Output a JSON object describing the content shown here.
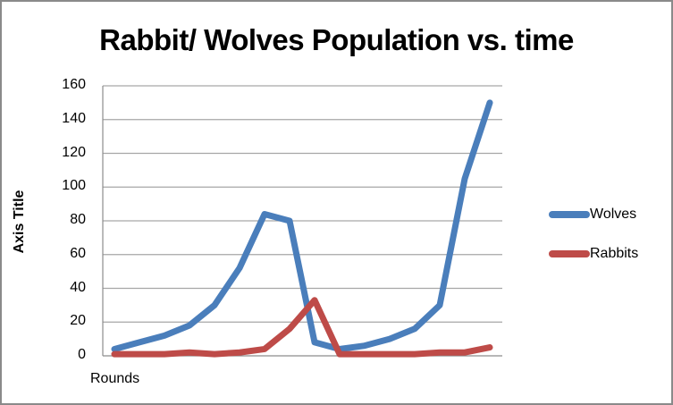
{
  "chart_data": {
    "type": "line",
    "title": "Rabbit/ Wolves Population vs. time",
    "xlabel": "Rounds",
    "ylabel": "Axis Title",
    "ylim": [
      0,
      160
    ],
    "yticks": [
      "0",
      "20",
      "40",
      "60",
      "80",
      "100",
      "120",
      "140",
      "160"
    ],
    "grid": true,
    "legend_position": "right",
    "x": [
      1,
      2,
      3,
      4,
      5,
      6,
      7,
      8,
      9,
      10,
      11,
      12,
      13,
      14,
      15,
      16
    ],
    "series": [
      {
        "name": "Wolves",
        "color": "#4a7ebb",
        "values": [
          4,
          8,
          12,
          18,
          30,
          52,
          84,
          80,
          8,
          4,
          6,
          10,
          16,
          30,
          105,
          150
        ]
      },
      {
        "name": "Rabbits",
        "color": "#be4b48",
        "values": [
          1,
          1,
          1,
          2,
          1,
          2,
          4,
          16,
          33,
          1,
          1,
          1,
          1,
          2,
          2,
          5
        ]
      }
    ]
  },
  "legend": {
    "items": [
      {
        "label": "Wolves",
        "color": "#4a7ebb"
      },
      {
        "label": "Rabbits",
        "color": "#be4b48"
      }
    ]
  }
}
